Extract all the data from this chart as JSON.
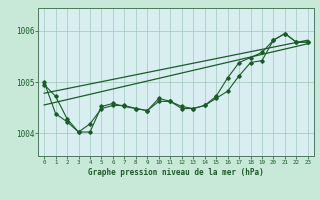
{
  "title": "Graphe pression niveau de la mer (hPa)",
  "bg_color": "#c8e8d8",
  "plot_bg_color": "#d8eef0",
  "line_color": "#1a5c28",
  "grid_color": "#a0c8b8",
  "xlim": [
    -0.5,
    23.5
  ],
  "ylim": [
    1003.55,
    1006.45
  ],
  "yticks": [
    1004,
    1005,
    1006
  ],
  "xticks": [
    0,
    1,
    2,
    3,
    4,
    5,
    6,
    7,
    8,
    9,
    10,
    11,
    12,
    13,
    14,
    15,
    16,
    17,
    18,
    19,
    20,
    21,
    22,
    23
  ],
  "series1": [
    1004.95,
    1004.72,
    1004.28,
    1004.02,
    1004.02,
    1004.52,
    1004.58,
    1004.52,
    1004.48,
    1004.44,
    1004.62,
    1004.62,
    1004.48,
    1004.48,
    1004.54,
    1004.68,
    1004.82,
    1005.12,
    1005.38,
    1005.42,
    1005.82,
    1005.95,
    1005.78,
    1005.78
  ],
  "series2": [
    1005.0,
    1004.38,
    1004.22,
    1004.02,
    1004.18,
    1004.48,
    1004.54,
    1004.54,
    1004.48,
    1004.44,
    1004.68,
    1004.62,
    1004.52,
    1004.48,
    1004.54,
    1004.72,
    1005.08,
    1005.38,
    1005.48,
    1005.58,
    1005.82,
    1005.95,
    1005.78,
    1005.78
  ],
  "trend1_x": [
    0,
    23
  ],
  "trend1_y": [
    1004.78,
    1005.82
  ],
  "trend2_x": [
    0,
    23
  ],
  "trend2_y": [
    1004.55,
    1005.75
  ]
}
